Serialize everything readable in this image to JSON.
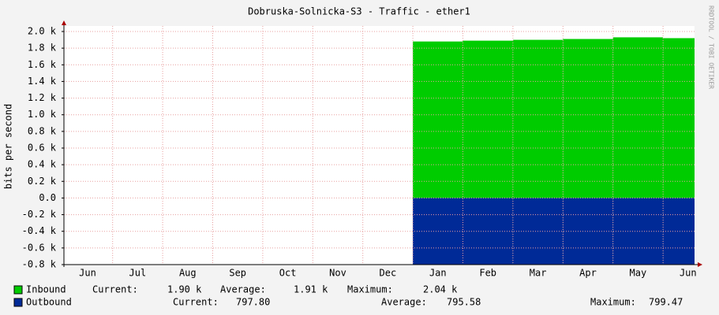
{
  "chart_data": {
    "type": "area",
    "title": "Dobruska-Solnicka-S3 - Traffic - ether1",
    "ylabel": "bits per second",
    "side_note": "RRDTOOL / TOBI OETIKER",
    "categories": [
      "Jun",
      "Jul",
      "Aug",
      "Sep",
      "Oct",
      "Nov",
      "Dec",
      "Jan",
      "Feb",
      "Mar",
      "Apr",
      "May",
      "Jun"
    ],
    "series": [
      {
        "name": "Inbound",
        "color": "#00cc00",
        "values": [
          null,
          null,
          null,
          null,
          null,
          null,
          null,
          1880,
          1890,
          1900,
          1910,
          1930,
          1920
        ]
      },
      {
        "name": "Outbound",
        "color": "#002a97",
        "values": [
          null,
          null,
          null,
          null,
          null,
          null,
          null,
          -798,
          -796,
          -795,
          -796,
          -795,
          -795
        ]
      }
    ],
    "legend_stats": [
      [
        "Current:",
        "1.90 k",
        "Average:",
        "1.91 k",
        "Maximum:",
        "2.04 k"
      ],
      [
        "Current:",
        "797.80",
        "Average:",
        "795.58",
        "Maximum:",
        "799.47"
      ]
    ],
    "ylim": [
      -800,
      2000
    ],
    "yticks": [
      {
        "value": 2000,
        "label": "2.0 k"
      },
      {
        "value": 1800,
        "label": "1.8 k"
      },
      {
        "value": 1600,
        "label": "1.6 k"
      },
      {
        "value": 1400,
        "label": "1.4 k"
      },
      {
        "value": 1200,
        "label": "1.2 k"
      },
      {
        "value": 1000,
        "label": "1.0 k"
      },
      {
        "value": 800,
        "label": "0.8 k"
      },
      {
        "value": 600,
        "label": "0.6 k"
      },
      {
        "value": 400,
        "label": "0.4 k"
      },
      {
        "value": 200,
        "label": "0.2 k"
      },
      {
        "value": 0,
        "label": "0.0"
      },
      {
        "value": -200,
        "label": "-0.2 k"
      },
      {
        "value": -400,
        "label": "-0.4 k"
      },
      {
        "value": -600,
        "label": "-0.6 k"
      },
      {
        "value": -800,
        "label": "-0.8 k"
      }
    ],
    "grid": true
  }
}
